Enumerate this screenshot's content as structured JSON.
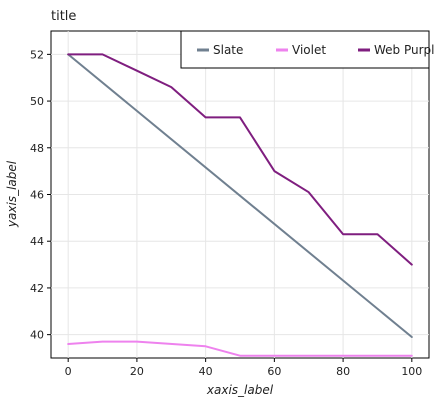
{
  "chart_data": {
    "type": "line",
    "title": "title",
    "xlabel": "xaxis_label",
    "ylabel": "yaxis_label",
    "xlim": [
      -5,
      105
    ],
    "ylim": [
      39,
      53
    ],
    "x_ticks": [
      0,
      20,
      40,
      60,
      80,
      100
    ],
    "y_ticks": [
      40,
      42,
      44,
      46,
      48,
      50,
      52
    ],
    "grid": true,
    "legend_position": "top-right",
    "series": [
      {
        "name": "Slate",
        "color": "#708090",
        "x": [
          0,
          100
        ],
        "y": [
          52.0,
          39.9
        ]
      },
      {
        "name": "Violet",
        "color": "#EE82EE",
        "x": [
          0,
          10,
          20,
          40,
          50,
          60,
          80,
          100
        ],
        "y": [
          39.6,
          39.7,
          39.7,
          39.5,
          39.1,
          39.1,
          39.1,
          39.1
        ]
      },
      {
        "name": "Web Purple",
        "color": "#7F1E7F",
        "x": [
          0,
          10,
          20,
          30,
          40,
          50,
          60,
          70,
          80,
          90,
          100
        ],
        "y": [
          52.0,
          52.0,
          51.3,
          50.6,
          49.3,
          49.3,
          47.0,
          46.1,
          44.3,
          44.3,
          43.0
        ]
      }
    ]
  }
}
